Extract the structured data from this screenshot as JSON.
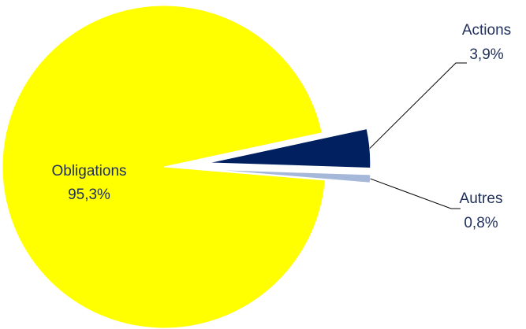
{
  "chart_data": {
    "type": "pie",
    "slices": [
      {
        "label": "Obligations",
        "value_label": "95,3%",
        "value": 95.3,
        "color": "#ffff00"
      },
      {
        "label": "Actions",
        "value_label": "3,9%",
        "value": 3.9,
        "color": "#002060"
      },
      {
        "label": "Autres",
        "value_label": "0,8%",
        "value": 0.8,
        "color": "#a6b8d9"
      }
    ],
    "exploded": [
      "Actions",
      "Autres"
    ]
  }
}
